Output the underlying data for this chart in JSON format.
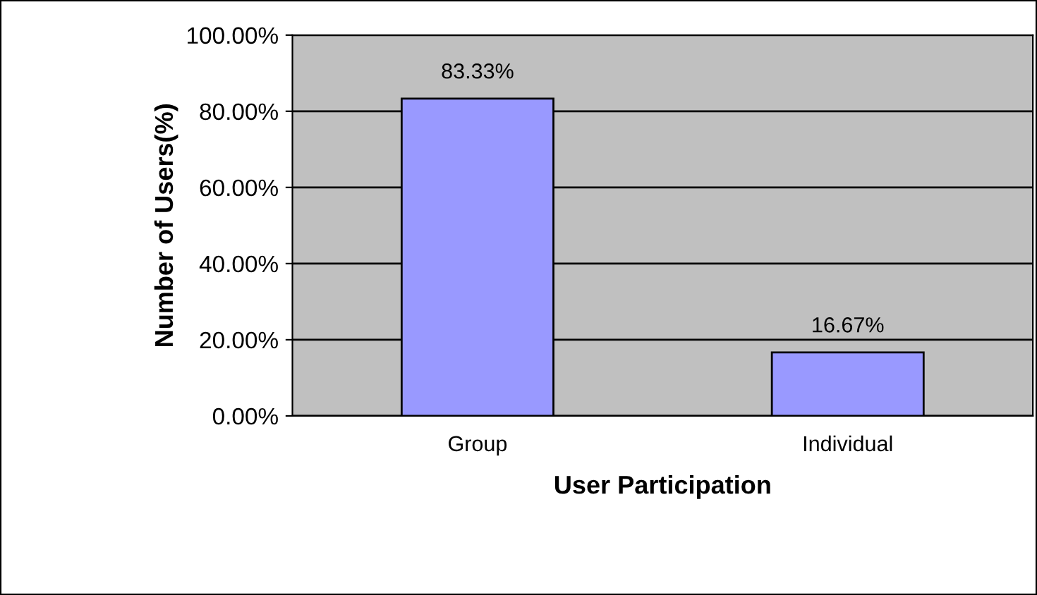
{
  "chart_data": {
    "type": "bar",
    "xlabel": "User Participation",
    "ylabel": "Number of Users(%)",
    "categories": [
      "Group",
      "Individual"
    ],
    "series": [
      {
        "color": "#9999ff",
        "values": [
          83.33,
          16.67
        ]
      }
    ],
    "value_labels": [
      "83.33%",
      "16.67%"
    ],
    "ylim": [
      0,
      100
    ],
    "yticks": [
      {
        "value": 0,
        "label": "0.00%"
      },
      {
        "value": 20,
        "label": "20.00%"
      },
      {
        "value": 40,
        "label": "40.00%"
      },
      {
        "value": 60,
        "label": "60.00%"
      },
      {
        "value": 80,
        "label": "80.00%"
      },
      {
        "value": 100,
        "label": "100.00%"
      }
    ],
    "grid": "y"
  }
}
